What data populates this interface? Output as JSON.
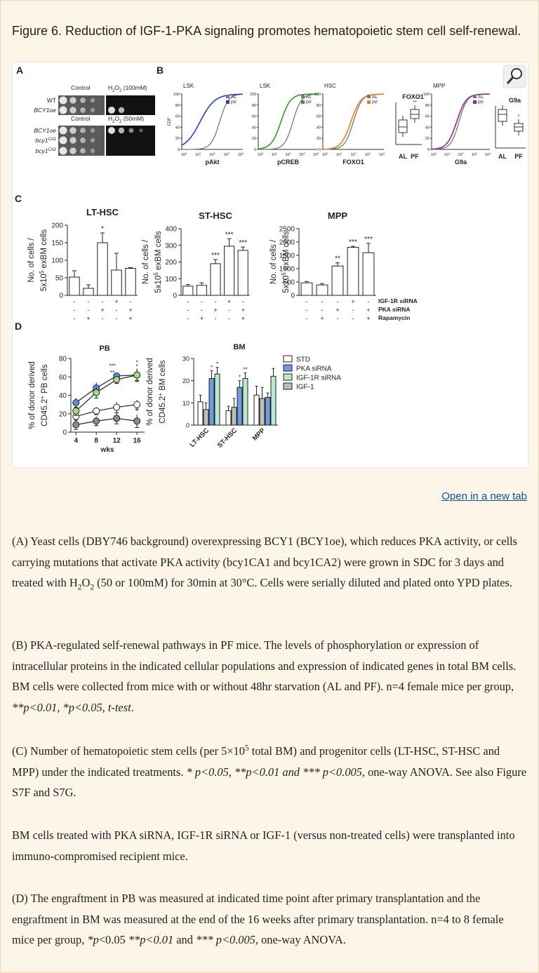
{
  "header": {
    "title": "Figure 6. Reduction of IGF-1-PKA signaling promotes hematopoietic stem cell self-renewal."
  },
  "figure": {
    "panel_letters": [
      "A",
      "B",
      "C",
      "D"
    ],
    "A": {
      "top": {
        "columns": [
          [
            "Control"
          ],
          [
            "H",
            {
              "sub": "2"
            },
            "O",
            {
              "sub": "2"
            },
            " (100mM)"
          ]
        ],
        "rows": [
          [
            "WT"
          ],
          [
            "BCY1oe"
          ]
        ]
      },
      "bottom": {
        "columns": [
          [
            "Control"
          ],
          [
            "H",
            {
              "sub": "2"
            },
            "O",
            {
              "sub": "2"
            },
            " (50mM)"
          ]
        ],
        "rows": [
          [
            "BCY1oe"
          ],
          [
            "bcy1",
            {
              "sup": "CA1"
            }
          ],
          [
            "bcy1",
            {
              "sup": "CA2"
            }
          ]
        ]
      }
    },
    "B": {
      "cdf_ylabel": "CDF",
      "cdf_yticks": [
        0,
        20,
        40,
        60,
        80,
        100
      ],
      "cdf_xticks": [
        [
          "10",
          {
            "sup": "0"
          }
        ],
        [
          "10",
          {
            "sup": "1"
          }
        ],
        [
          "10",
          {
            "sup": "2"
          }
        ],
        [
          "10",
          {
            "sup": "3"
          }
        ],
        [
          "10",
          {
            "sup": "4"
          }
        ]
      ],
      "legend": [
        "AL",
        "PF"
      ],
      "plots": [
        {
          "population": "LSK",
          "marker": "pAkt",
          "color": "#1f3fd6"
        },
        {
          "population": "LSK",
          "marker": "pCREB",
          "color": "#2aa02a"
        },
        {
          "population": "HSC",
          "marker": "FOXO1",
          "color": "#ee7d22"
        },
        {
          "population": "MPP",
          "marker": "G9a",
          "color": "#8e2c8e"
        }
      ],
      "boxes": [
        {
          "title": "FOXO1",
          "sig": "**"
        },
        {
          "title": "G9a",
          "sig": "*"
        }
      ],
      "groups": [
        "AL",
        "PF"
      ]
    },
    "C": {
      "ylabel": [
        [
          "No. of cells /"
        ],
        [
          "5x10",
          {
            "sup": "5"
          },
          " exBM cells"
        ]
      ],
      "treatments": [
        "IGF-1R siRNA",
        "PKA siRNA",
        "Rapamycin"
      ],
      "treatment_signs": [
        [
          "-",
          "-",
          "-",
          "+",
          "-"
        ],
        [
          "-",
          "-",
          "+",
          "-",
          "+"
        ],
        [
          "-",
          "+",
          "-",
          "-",
          "+"
        ]
      ],
      "charts": [
        {
          "type": "bar",
          "title": "LT-HSC",
          "values": [
            52,
            20,
            150,
            72,
            77
          ],
          "errors": [
            18,
            10,
            28,
            48,
            2
          ],
          "sig": [
            null,
            null,
            "*",
            null,
            null
          ],
          "ylim": [
            0,
            200
          ],
          "yticks": [
            0,
            50,
            100,
            150,
            200
          ]
        },
        {
          "type": "bar",
          "title": "ST-HSC",
          "values": [
            55,
            60,
            190,
            295,
            270
          ],
          "errors": [
            10,
            15,
            25,
            45,
            20
          ],
          "sig": [
            null,
            null,
            "***",
            "***",
            "***"
          ],
          "ylim": [
            0,
            400
          ],
          "yticks": [
            0,
            100,
            200,
            300,
            400
          ]
        },
        {
          "type": "bar",
          "title": "MPP",
          "values": [
            470,
            390,
            1100,
            1800,
            1600
          ],
          "errors": [
            50,
            50,
            120,
            40,
            350
          ],
          "sig": [
            null,
            null,
            "**",
            "***",
            "***"
          ],
          "ylim": [
            0,
            2500
          ],
          "yticks": [
            0,
            500,
            1000,
            1500,
            2000,
            2500
          ]
        }
      ]
    },
    "D": {
      "PB": {
        "type": "line",
        "title": "PB",
        "x": [
          4,
          8,
          12,
          16
        ],
        "xlim": [
          3,
          17.5
        ],
        "xticks": [
          4,
          8,
          12,
          16
        ],
        "xlabel": "wks",
        "ylabel": [
          [
            "% of donor derived"
          ],
          [
            "CD45.2",
            {
              "sup": "+"
            },
            " PB cells"
          ]
        ],
        "ylim": [
          0,
          80
        ],
        "yticks": [
          0,
          20,
          40,
          60,
          80
        ],
        "series": [
          {
            "name": "STD",
            "color": "#ffffff",
            "values": [
              17,
              23,
              27,
              30
            ],
            "errors": [
              4,
              4,
              6,
              5
            ]
          },
          {
            "name": "PKA siRNA",
            "color": "#5b8ee0",
            "values": [
              32,
              48,
              61,
              62
            ],
            "errors": [
              5,
              6,
              4,
              7
            ],
            "sig": [
              null,
              null,
              "***",
              "*"
            ]
          },
          {
            "name": "IGF-1R siRNA",
            "color": "#a6e07a",
            "values": [
              23,
              43,
              57,
              62
            ],
            "errors": [
              5,
              6,
              4,
              6
            ],
            "sig": [
              null,
              null,
              "**",
              "*"
            ]
          },
          {
            "name": "IGF-1",
            "color": "#8c8c8c",
            "values": [
              8,
              12,
              15,
              12
            ],
            "errors": [
              5,
              5,
              6,
              7
            ],
            "sig": [
              null,
              null,
              null,
              "*"
            ]
          }
        ]
      },
      "BM": {
        "type": "bar",
        "title": "BM",
        "categories": [
          "LT-HSC",
          "ST-HSC",
          "MPP"
        ],
        "ylabel": [
          [
            "% of donor derived"
          ],
          [
            "CD45.2",
            {
              "sup": "+"
            },
            " BM cells"
          ]
        ],
        "ylim": [
          0,
          30
        ],
        "yticks": [
          0,
          10,
          20,
          30
        ],
        "bar_order": [
          0,
          3,
          1,
          2
        ],
        "series": [
          {
            "name": "STD",
            "color": "#ffffff",
            "values": [
              10.5,
              6.5,
              13.5
            ],
            "errors": [
              3,
              2,
              4
            ]
          },
          {
            "name": "PKA siRNA",
            "color": "#6f9be0",
            "values": [
              21,
              17,
              12.5
            ],
            "errors": [
              3.5,
              3,
              2
            ],
            "sig": [
              "*",
              "*",
              null
            ]
          },
          {
            "name": "IGF-1R siRNA",
            "color": "#b8ead2",
            "values": [
              23,
              21,
              22
            ],
            "errors": [
              3,
              2.5,
              3.5
            ],
            "sig": [
              "*",
              "**",
              null
            ]
          },
          {
            "name": "IGF-1",
            "color": "#bdbdbd",
            "values": [
              7,
              8,
              12
            ],
            "errors": [
              3,
              4,
              5
            ]
          }
        ]
      }
    }
  },
  "link": "Open in a new tab",
  "caption": [
    [
      "(A) Yeast cells (DBY746 background) overexpressing BCY1 (BCY1oe), which reduces PKA activity, or cells carrying mutations that activate PKA activity (bcy1CA1 and bcy1CA2) were grown in SDC for 3 days and treated with H",
      {
        "sub": "2"
      },
      "O",
      {
        "sub": "2"
      },
      " (50 or 100mM) for 30min at 30°C. Cells were serially diluted and plated onto YPD plates."
    ],
    [
      "(B) PKA-regulated self-renewal pathways in PF mice. The levels of phosphorylation or expression of intracellular proteins in the indicated cellular populations and expression of indicated genes in total BM cells. BM cells were collected from mice with or without 48hr starvation (AL and PF). n=4 female mice per group, ",
      {
        "i": "**p<0.01, *p<0.05, t-test"
      },
      "."
    ],
    [
      "(C) Number of hematopoietic stem cells (per 5×10",
      {
        "sup": "5"
      },
      " total BM) and progenitor cells (LT-HSC, ST-HSC and MPP) under the indicated treatments. ",
      {
        "i": "* p<0.05, **p<0.01 and *** p<0.005"
      },
      ", one-way ANOVA. See also Figure S7F and S7G."
    ],
    [
      "BM cells treated with PKA siRNA, IGF-1R siRNA or IGF-1 (versus non-treated cells) were transplanted into immuno-compromised recipient mice."
    ],
    [
      "(D) The engraftment in PB was measured at indicated time point after primary transplantation and the engraftment in BM was measured at the end of the 16 weeks after primary transplantation. n=4 to 8 female mice per group, ",
      {
        "i": "*p"
      },
      "<0.05 ",
      {
        "i": "**p<0.01"
      },
      " and ",
      {
        "i": "*** p<0.005"
      },
      ", one-way ANOVA."
    ]
  ]
}
